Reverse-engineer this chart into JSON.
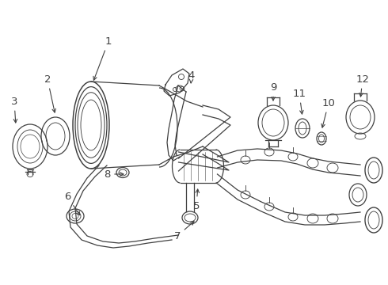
{
  "bg_color": "#ffffff",
  "line_color": "#404040",
  "lw": 0.9,
  "figsize": [
    4.9,
    3.6
  ],
  "dpi": 100
}
